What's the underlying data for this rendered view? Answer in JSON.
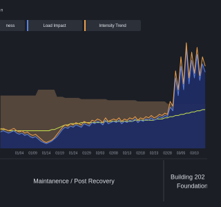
{
  "chart_data": {
    "type": "line",
    "title": "n",
    "categories": [
      null,
      null,
      null,
      null,
      null,
      null,
      null,
      "01/04",
      null,
      null,
      null,
      null,
      "01/09",
      null,
      null,
      null,
      null,
      "01/14",
      null,
      null,
      null,
      null,
      "01/19",
      null,
      null,
      null,
      null,
      "01/24",
      null,
      null,
      null,
      null,
      "01/29",
      null,
      null,
      null,
      null,
      "02/03",
      null,
      null,
      null,
      null,
      "02/08",
      null,
      null,
      null,
      null,
      "02/13",
      null,
      null,
      null,
      null,
      "02/18",
      null,
      null,
      null,
      null,
      "02/23",
      null,
      null,
      null,
      null,
      "02/28",
      null,
      null,
      null,
      null,
      "03/05",
      null,
      null,
      null,
      null,
      "03/10",
      null,
      null,
      null,
      null
    ],
    "ylim": [
      0,
      100
    ],
    "area": {
      "color": "#5e4d3f",
      "values": [
        45,
        45,
        45,
        45,
        45,
        45,
        45,
        45,
        45,
        45,
        45,
        45,
        45,
        45,
        50,
        50,
        50,
        50,
        50,
        50,
        50,
        44,
        44,
        44,
        43,
        43,
        43,
        43,
        43,
        43,
        42,
        42,
        42,
        42,
        42,
        42,
        42,
        42,
        42,
        42,
        41,
        41,
        41,
        41,
        41,
        41,
        41,
        41,
        41,
        41,
        41,
        40,
        40,
        40,
        40,
        40,
        40,
        40,
        40,
        40,
        40,
        40,
        38,
        38,
        38,
        38,
        38,
        38,
        38,
        38,
        38,
        38,
        38,
        38,
        38,
        38,
        38
      ]
    },
    "series": [
      {
        "name": "ness",
        "color": "#c9e34f",
        "values": [
          17,
          16,
          16,
          15,
          15,
          15,
          15,
          15,
          15,
          15,
          15,
          15,
          15,
          15,
          15,
          15,
          15,
          15,
          15,
          16,
          16,
          17,
          18,
          19,
          20,
          20,
          21,
          21,
          21,
          21,
          22,
          22,
          22,
          22,
          22,
          22,
          22,
          22,
          22,
          23,
          23,
          23,
          23,
          23,
          23,
          23,
          23,
          23,
          23,
          23,
          24,
          24,
          24,
          24,
          24,
          24,
          24,
          24,
          25,
          25,
          25,
          26,
          26,
          27,
          27,
          28,
          28,
          29,
          29,
          30,
          30,
          31,
          31,
          32,
          32,
          33,
          33
        ]
      },
      {
        "name": "Load Impact",
        "color": "#5a82e0",
        "fill": "#1f2c63",
        "values": [
          14,
          15,
          14,
          13,
          14,
          15,
          13,
          12,
          13,
          11,
          12,
          10,
          9,
          10,
          8,
          6,
          5,
          4,
          5,
          6,
          8,
          10,
          13,
          16,
          18,
          17,
          19,
          18,
          20,
          19,
          18,
          21,
          20,
          19,
          22,
          21,
          23,
          22,
          20,
          24,
          21,
          22,
          23,
          22,
          24,
          21,
          23,
          22,
          24,
          23,
          25,
          22,
          24,
          23,
          25,
          24,
          26,
          24,
          25,
          27,
          26,
          28,
          27,
          35,
          32,
          60,
          45,
          70,
          50,
          85,
          55,
          75,
          60,
          80,
          58,
          72,
          65
        ]
      },
      {
        "name": "Intensity Trend",
        "color": "#eea04c",
        "values": [
          16,
          17,
          16,
          15,
          16,
          17,
          15,
          14,
          15,
          13,
          14,
          12,
          11,
          12,
          10,
          8,
          6,
          5,
          6,
          7,
          9,
          12,
          15,
          18,
          20,
          19,
          21,
          20,
          22,
          21,
          20,
          23,
          22,
          21,
          24,
          23,
          25,
          24,
          22,
          26,
          23,
          24,
          25,
          24,
          26,
          23,
          25,
          24,
          26,
          25,
          27,
          24,
          26,
          25,
          27,
          26,
          28,
          26,
          27,
          29,
          28,
          30,
          29,
          40,
          36,
          66,
          50,
          78,
          55,
          90,
          60,
          82,
          64,
          86,
          62,
          78,
          70
        ]
      }
    ],
    "annotations": [
      "Maintanence / Post Recovery",
      "Building 202",
      "Foundation"
    ]
  }
}
